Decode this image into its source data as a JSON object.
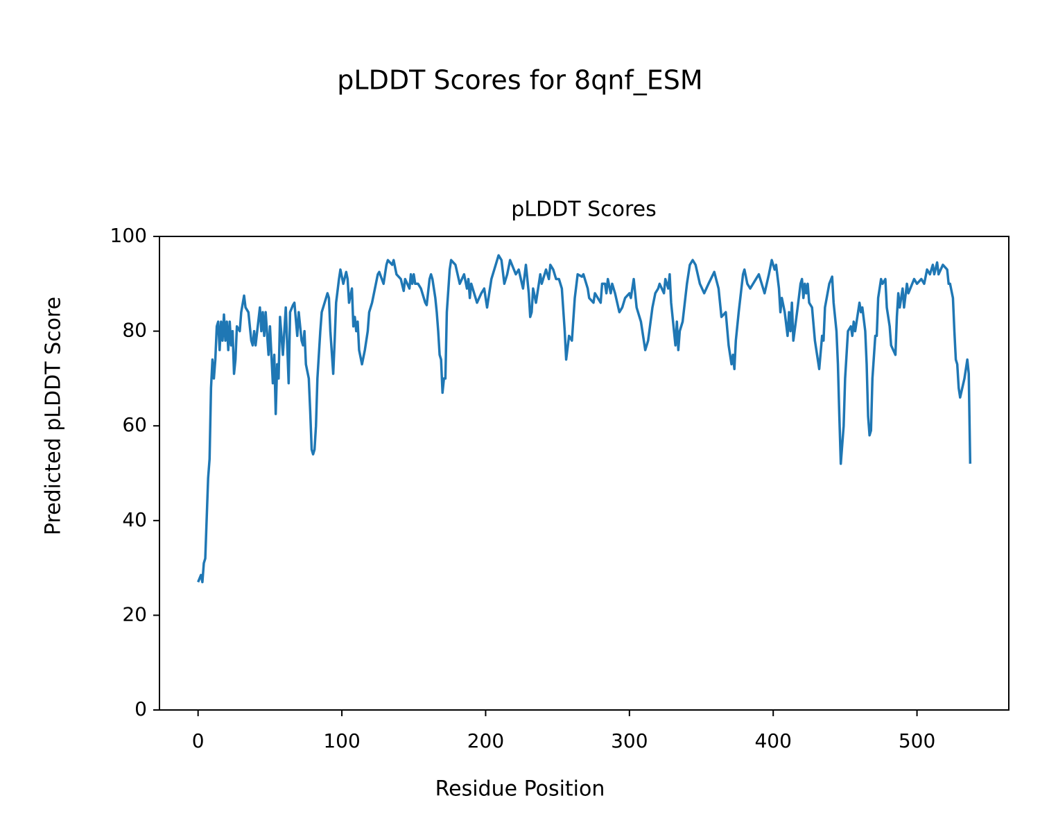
{
  "chart_data": {
    "type": "line",
    "title": "pLDDT Scores for 8qnf_ESM",
    "subtitle": "pLDDT Scores",
    "xlabel": "Residue Position",
    "ylabel": "Predicted pLDDT Score",
    "color": "#1f77b4",
    "xlim": [
      -26.85,
      563.85
    ],
    "ylim": [
      0,
      100
    ],
    "xticks": [
      0,
      100,
      200,
      300,
      400,
      500
    ],
    "yticks": [
      0,
      20,
      40,
      60,
      80,
      100
    ],
    "x": [
      0,
      2,
      3,
      4,
      5,
      7,
      8,
      9,
      10,
      11,
      12,
      13,
      14,
      15,
      16,
      17,
      18,
      19,
      20,
      21,
      22,
      23,
      24,
      25,
      26,
      27,
      29,
      30,
      32,
      33,
      35,
      37,
      38,
      39,
      40,
      43,
      44,
      45,
      46,
      47,
      49,
      50,
      52,
      53,
      54,
      55,
      56,
      57,
      59,
      61,
      63,
      64,
      66,
      67,
      69,
      70,
      72,
      73,
      74,
      75,
      77,
      78,
      79,
      80,
      81,
      82,
      83,
      85,
      86,
      88,
      90,
      91,
      92,
      94,
      95,
      96,
      98,
      99,
      101,
      103,
      104,
      105,
      107,
      108,
      109,
      110,
      111,
      112,
      114,
      116,
      118,
      119,
      121,
      123,
      125,
      126,
      129,
      131,
      132,
      135,
      136,
      138,
      141,
      143,
      144,
      147,
      148,
      149,
      150,
      151,
      153,
      155,
      158,
      159,
      161,
      162,
      163,
      165,
      166,
      167,
      168,
      169,
      170,
      171,
      172,
      173,
      175,
      176,
      179,
      182,
      185,
      187,
      188,
      189,
      190,
      194,
      197,
      199,
      201,
      204,
      208,
      209,
      211,
      213,
      215,
      217,
      221,
      223,
      226,
      228,
      230,
      231,
      232,
      233,
      235,
      238,
      239,
      242,
      244,
      245,
      247,
      249,
      251,
      253,
      255,
      256,
      258,
      260,
      262,
      264,
      267,
      268,
      271,
      272,
      275,
      276,
      280,
      281,
      283,
      284,
      285,
      287,
      288,
      290,
      293,
      295,
      297,
      300,
      301,
      303,
      305,
      308,
      311,
      313,
      316,
      318,
      320,
      321,
      324,
      325,
      326,
      327,
      328,
      329,
      332,
      333,
      334,
      335,
      337,
      340,
      342,
      344,
      346,
      349,
      352,
      355,
      359,
      362,
      364,
      367,
      369,
      371,
      372,
      373,
      374,
      376,
      379,
      380,
      382,
      384,
      388,
      390,
      392,
      394,
      397,
      399,
      401,
      402,
      404,
      405,
      406,
      408,
      410,
      411,
      412,
      413,
      414,
      417,
      419,
      420,
      421,
      422,
      423,
      424,
      425,
      427,
      429,
      431,
      432,
      434,
      435,
      436,
      439,
      441,
      442,
      444,
      445,
      446,
      447,
      449,
      450,
      452,
      454,
      455,
      456,
      457,
      460,
      461,
      462,
      464,
      465,
      466,
      467,
      468,
      469,
      471,
      472,
      473,
      475,
      476,
      478,
      479,
      481,
      482,
      485,
      486,
      487,
      488,
      490,
      491,
      493,
      494,
      498,
      500,
      503,
      505,
      507,
      509,
      511,
      512,
      514,
      515,
      518,
      521,
      522,
      523,
      525,
      526,
      527,
      528,
      529,
      530,
      533,
      535,
      536,
      537
    ],
    "values": [
      27,
      28.5,
      27,
      31,
      32,
      49,
      53,
      68,
      74,
      70,
      74,
      81,
      82,
      76,
      82,
      78,
      83.5,
      78,
      82,
      76,
      82,
      77,
      80,
      71,
      74,
      81,
      80,
      84,
      87.5,
      85,
      84,
      78,
      77,
      80,
      77,
      85,
      80,
      84,
      79,
      84,
      75,
      81,
      69,
      75,
      62.5,
      73,
      70,
      83,
      75,
      85,
      69,
      84,
      85.5,
      86,
      79,
      84,
      78,
      77,
      80,
      73,
      70,
      63,
      55,
      54,
      55,
      60,
      70,
      80,
      84,
      86,
      88,
      87,
      80,
      71,
      78,
      86,
      91,
      93,
      90,
      92.5,
      91,
      86,
      89,
      81,
      83,
      80,
      82,
      76,
      73,
      76,
      80,
      84,
      86,
      89,
      92,
      92.5,
      90,
      94,
      95,
      94,
      95,
      92,
      91,
      88.5,
      91,
      89,
      92,
      90,
      92,
      90,
      90,
      89,
      86,
      85.5,
      91,
      92,
      91,
      87,
      84,
      80,
      75,
      74,
      67,
      70,
      70,
      84,
      93,
      95,
      94,
      90,
      92,
      89,
      91,
      87,
      90,
      86,
      88,
      89,
      85,
      91,
      95,
      96,
      95,
      90,
      92,
      95,
      92,
      93,
      89,
      94,
      88,
      83,
      84,
      89,
      86,
      92,
      90,
      93,
      91,
      94,
      93,
      91,
      91,
      89,
      80,
      74,
      79,
      78,
      87,
      92,
      91.5,
      92,
      89,
      87,
      86,
      88,
      86,
      90,
      90,
      88,
      91,
      88,
      90,
      88,
      84,
      85,
      87,
      88,
      87,
      91,
      85,
      82,
      76,
      78,
      85,
      88,
      89,
      90,
      88,
      91,
      90,
      89,
      92,
      86,
      77,
      82,
      76,
      80,
      82,
      90,
      94,
      95,
      94,
      90,
      88,
      90,
      92.5,
      89,
      83,
      84,
      77,
      73,
      75,
      72,
      78,
      84,
      92,
      93,
      90,
      89,
      91,
      92,
      90,
      88,
      92,
      95,
      93,
      94,
      89,
      84,
      87,
      84,
      79,
      84,
      80,
      86,
      78,
      85,
      90,
      91,
      87,
      90,
      88,
      90,
      86,
      85,
      78,
      74,
      72,
      79,
      78,
      85,
      90,
      91.5,
      86,
      80,
      73,
      62,
      52,
      60,
      70,
      80,
      81,
      79,
      82,
      80,
      86,
      84,
      85,
      80,
      73,
      62,
      58,
      59,
      70,
      79,
      79,
      87,
      91,
      90,
      91,
      85,
      81,
      77,
      75,
      83,
      88,
      85,
      89,
      85,
      90,
      88,
      91,
      90,
      91,
      90,
      93,
      92,
      94,
      92,
      94.5,
      92,
      94,
      93,
      90,
      90,
      87,
      80,
      74,
      73,
      68,
      66,
      70,
      74,
      71,
      52
    ]
  }
}
